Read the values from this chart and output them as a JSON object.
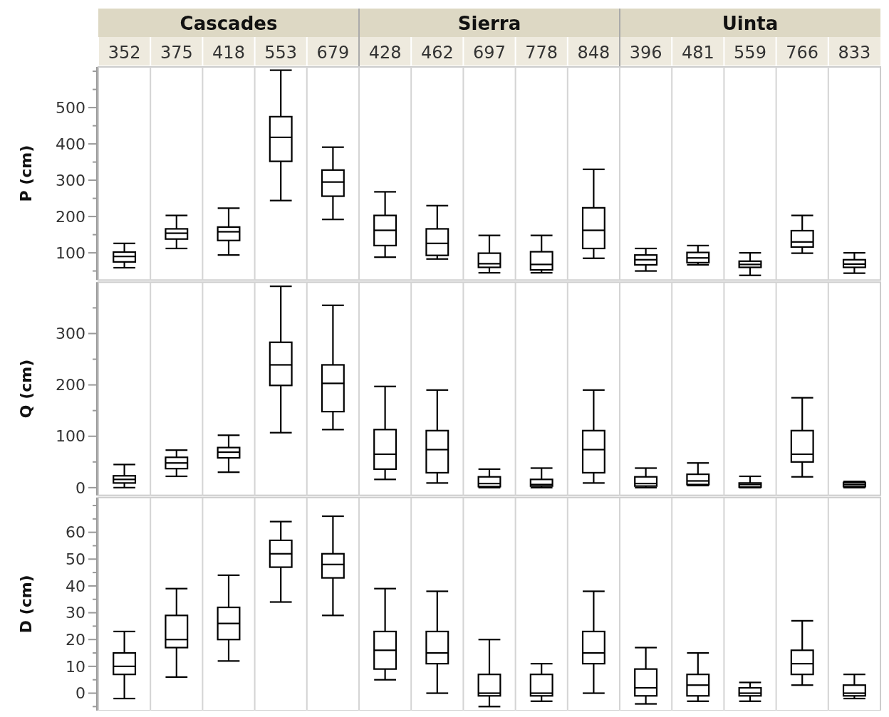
{
  "chart_data": [
    {
      "type": "box",
      "ylabel": "P (cm)",
      "annotations": [
        "Cascades",
        "Sierra",
        "Uinta"
      ],
      "categories": [
        "352",
        "375",
        "418",
        "553",
        "679",
        "428",
        "462",
        "697",
        "778",
        "848",
        "396",
        "481",
        "559",
        "766",
        "833"
      ],
      "boxes": [
        {
          "low": 59,
          "q1": 75,
          "median": 90,
          "q3": 102,
          "high": 126
        },
        {
          "low": 112,
          "q1": 138,
          "median": 154,
          "q3": 166,
          "high": 203
        },
        {
          "low": 94,
          "q1": 134,
          "median": 158,
          "q3": 171,
          "high": 223
        },
        {
          "low": 244,
          "q1": 352,
          "median": 418,
          "q3": 475,
          "high": 603
        },
        {
          "low": 192,
          "q1": 256,
          "median": 295,
          "q3": 328,
          "high": 391
        },
        {
          "low": 88,
          "q1": 120,
          "median": 162,
          "q3": 203,
          "high": 268
        },
        {
          "low": 83,
          "q1": 93,
          "median": 126,
          "q3": 166,
          "high": 230
        },
        {
          "low": 45,
          "q1": 60,
          "median": 70,
          "q3": 99,
          "high": 148
        },
        {
          "low": 45,
          "q1": 53,
          "median": 68,
          "q3": 103,
          "high": 148
        },
        {
          "low": 85,
          "q1": 112,
          "median": 162,
          "q3": 224,
          "high": 330
        },
        {
          "low": 50,
          "q1": 67,
          "median": 81,
          "q3": 94,
          "high": 112
        },
        {
          "low": 67,
          "q1": 73,
          "median": 86,
          "q3": 101,
          "high": 120
        },
        {
          "low": 38,
          "q1": 60,
          "median": 68,
          "q3": 77,
          "high": 100
        },
        {
          "low": 99,
          "q1": 116,
          "median": 130,
          "q3": 161,
          "high": 203
        },
        {
          "low": 44,
          "q1": 60,
          "median": 69,
          "q3": 81,
          "high": 100
        }
      ],
      "ylim": [
        25,
        612
      ],
      "yticks": [
        {
          "value": 50,
          "label": null
        },
        100,
        {
          "value": 150,
          "label": null
        },
        200,
        {
          "value": 250,
          "label": null
        },
        300,
        {
          "value": 350,
          "label": null
        },
        400,
        {
          "value": 450,
          "label": null
        },
        500,
        {
          "value": 550,
          "label": null
        },
        {
          "value": 600,
          "label": null
        }
      ]
    },
    {
      "type": "box",
      "ylabel": "Q (cm)",
      "tick_labels": "y",
      "categories": [
        "352",
        "375",
        "418",
        "553",
        "679",
        "428",
        "462",
        "697",
        "778",
        "848",
        "396",
        "481",
        "559",
        "766",
        "833"
      ],
      "boxes": [
        {
          "low": 0,
          "q1": 9,
          "median": 16,
          "q3": 23,
          "high": 45
        },
        {
          "low": 22,
          "q1": 37,
          "median": 48,
          "q3": 59,
          "high": 73
        },
        {
          "low": 30,
          "q1": 58,
          "median": 69,
          "q3": 78,
          "high": 102
        },
        {
          "low": 107,
          "q1": 199,
          "median": 239,
          "q3": 283,
          "high": 392
        },
        {
          "low": 113,
          "q1": 148,
          "median": 203,
          "q3": 239,
          "high": 355
        },
        {
          "low": 16,
          "q1": 36,
          "median": 65,
          "q3": 113,
          "high": 197
        },
        {
          "low": 9,
          "q1": 29,
          "median": 74,
          "q3": 111,
          "high": 190
        },
        {
          "low": 0,
          "q1": 2,
          "median": 8,
          "q3": 21,
          "high": 36
        },
        {
          "low": 0,
          "q1": 3,
          "median": 6,
          "q3": 16,
          "high": 38
        },
        {
          "low": 9,
          "q1": 29,
          "median": 74,
          "q3": 111,
          "high": 190
        },
        {
          "low": 0,
          "q1": 3,
          "median": 8,
          "q3": 21,
          "high": 38
        },
        {
          "low": 4,
          "q1": 6,
          "median": 13,
          "q3": 26,
          "high": 48
        },
        {
          "low": 0,
          "q1": 1,
          "median": 6,
          "q3": 9,
          "high": 22
        },
        {
          "low": 21,
          "q1": 50,
          "median": 65,
          "q3": 111,
          "high": 175
        },
        {
          "low": 0,
          "q1": 2,
          "median": 6,
          "q3": 10,
          "high": 12
        }
      ],
      "ylim": [
        -15,
        400
      ],
      "yticks": [
        0,
        {
          "value": 50,
          "label": null
        },
        100,
        {
          "value": 150,
          "label": null
        },
        200,
        {
          "value": 250,
          "label": null
        },
        300,
        {
          "value": 350,
          "label": null
        }
      ]
    },
    {
      "type": "box",
      "ylabel": "D (cm)",
      "tick_labels": "y",
      "categories": [
        "352",
        "375",
        "418",
        "553",
        "679",
        "428",
        "462",
        "697",
        "778",
        "848",
        "396",
        "481",
        "559",
        "766",
        "833"
      ],
      "boxes": [
        {
          "low": -2,
          "q1": 7,
          "median": 10,
          "q3": 15,
          "high": 23
        },
        {
          "low": 6,
          "q1": 17,
          "median": 20,
          "q3": 29,
          "high": 39
        },
        {
          "low": 12,
          "q1": 20,
          "median": 26,
          "q3": 32,
          "high": 44
        },
        {
          "low": 34,
          "q1": 47,
          "median": 52,
          "q3": 57,
          "high": 64
        },
        {
          "low": 29,
          "q1": 43,
          "median": 48,
          "q3": 52,
          "high": 66
        },
        {
          "low": 5,
          "q1": 9,
          "median": 16,
          "q3": 23,
          "high": 39
        },
        {
          "low": 0,
          "q1": 11,
          "median": 15,
          "q3": 23,
          "high": 38
        },
        {
          "low": -5,
          "q1": -1,
          "median": 0,
          "q3": 7,
          "high": 20
        },
        {
          "low": -3,
          "q1": -1,
          "median": 0,
          "q3": 7,
          "high": 11
        },
        {
          "low": 0,
          "q1": 11,
          "median": 15,
          "q3": 23,
          "high": 38
        },
        {
          "low": -4,
          "q1": -1,
          "median": 2,
          "q3": 9,
          "high": 17
        },
        {
          "low": -3,
          "q1": -1,
          "median": 3,
          "q3": 7,
          "high": 15
        },
        {
          "low": -3,
          "q1": -1,
          "median": 0,
          "q3": 2,
          "high": 4
        },
        {
          "low": 3,
          "q1": 7,
          "median": 11,
          "q3": 16,
          "high": 27
        },
        {
          "low": -2,
          "q1": -1,
          "median": 0,
          "q3": 3,
          "high": 7
        }
      ],
      "ylim": [
        -6.5,
        73
      ],
      "yticks": [
        {
          "value": -5,
          "label": null
        },
        0,
        {
          "value": 5,
          "label": null
        },
        10,
        {
          "value": 15,
          "label": null
        },
        20,
        {
          "value": 25,
          "label": null
        },
        30,
        {
          "value": 35,
          "label": null
        },
        40,
        {
          "value": 45,
          "label": null
        },
        50,
        {
          "value": 55,
          "label": null
        },
        60,
        {
          "value": 65,
          "label": null
        },
        {
          "value": 70,
          "label": null
        }
      ]
    }
  ]
}
